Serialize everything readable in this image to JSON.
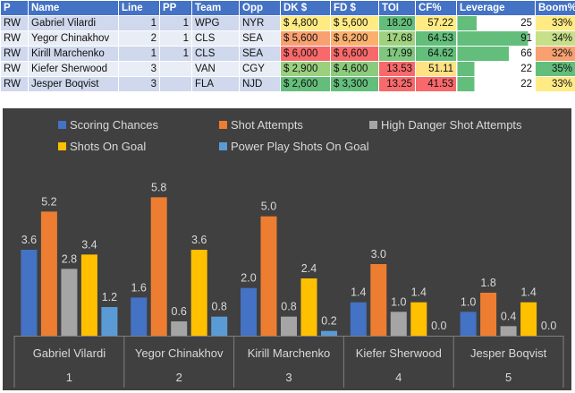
{
  "table": {
    "headers": [
      "P",
      "Name",
      "Line",
      "PP",
      "Team",
      "Opp",
      "DK $",
      "FD $",
      "TOI",
      "CF%",
      "Leverage",
      "Boom%"
    ],
    "rows": [
      [
        "RW",
        "Gabriel Vilardi",
        "1",
        "1",
        "WPG",
        "NYR",
        "$ 4,800",
        "$ 5,600",
        "18.20",
        "57.22",
        "25",
        "33%"
      ],
      [
        "RW",
        "Yegor Chinakhov",
        "2",
        "1",
        "CLS",
        "SEA",
        "$ 5,600",
        "$ 6,200",
        "17.68",
        "64.53",
        "91",
        "34%"
      ],
      [
        "RW",
        "Kirill Marchenko",
        "1",
        "1",
        "CLS",
        "SEA",
        "$ 6,000",
        "$ 6,600",
        "17.99",
        "64.62",
        "66",
        "32%"
      ],
      [
        "RW",
        "Kiefer Sherwood",
        "3",
        "",
        "VAN",
        "CGY",
        "$ 2,900",
        "$ 4,600",
        "13.53",
        "51.11",
        "22",
        "35%"
      ],
      [
        "RW",
        "Jesper Boqvist",
        "3",
        "",
        "FLA",
        "NJD",
        "$ 2,600",
        "$ 3,300",
        "13.25",
        "41.53",
        "22",
        "33%"
      ]
    ],
    "cell_colors": [
      [
        "",
        "",
        "",
        "",
        "",
        "",
        "#ffeb84",
        "#ffeb84",
        "#63be7b",
        "#ffeb84",
        "",
        "#ffeb84"
      ],
      [
        "",
        "",
        "",
        "",
        "",
        "",
        "#f8a070",
        "#fbb06e",
        "#a0d17f",
        "#63be7b",
        "#63be7b",
        "#c6e08a"
      ],
      [
        "",
        "",
        "",
        "",
        "",
        "",
        "#f8696b",
        "#f8696b",
        "#7fc77e",
        "#63be7b",
        "",
        "#f8a070"
      ],
      [
        "",
        "",
        "",
        "",
        "",
        "",
        "#9bd07f",
        "#8bcb7c",
        "#f8696b",
        "#ffe283",
        "",
        "#63be7b"
      ],
      [
        "",
        "",
        "",
        "",
        "",
        "",
        "#63be7b",
        "#63be7b",
        "#f8696b",
        "#f8696b",
        "",
        "#ffeb84"
      ]
    ],
    "leverage_bar_color": "#63be7b"
  },
  "chart_data": {
    "type": "bar",
    "title": "",
    "xlabel": "",
    "ylabel": "",
    "ylim": [
      0,
      6
    ],
    "grid": false,
    "legend_position": "top",
    "categories": [
      "Gabriel Vilardi",
      "Yegor Chinakhov",
      "Kirill Marchenko",
      "Kiefer Sherwood",
      "Jesper Boqvist"
    ],
    "category_numbers": [
      "1",
      "2",
      "3",
      "4",
      "5"
    ],
    "series": [
      {
        "name": "Scoring Chances",
        "color": "#4472c4",
        "values": [
          3.6,
          1.6,
          2.0,
          1.4,
          1.0
        ]
      },
      {
        "name": "Shot Attempts",
        "color": "#ed7d31",
        "values": [
          5.2,
          5.8,
          5.0,
          3.0,
          1.8
        ]
      },
      {
        "name": "High Danger Shot Attempts",
        "color": "#a5a5a5",
        "values": [
          2.8,
          0.6,
          0.8,
          1.0,
          0.4
        ]
      },
      {
        "name": "Shots On Goal",
        "color": "#ffc000",
        "values": [
          3.4,
          3.6,
          2.4,
          1.4,
          1.4
        ]
      },
      {
        "name": "Power Play Shots On Goal",
        "color": "#5b9bd5",
        "values": [
          1.2,
          0.8,
          0.2,
          0.0,
          0.0
        ]
      }
    ],
    "value_labels": [
      [
        "3.6",
        "1.6",
        "2.0",
        "1.4",
        "1.0"
      ],
      [
        "5.2",
        "5.8",
        "5.0",
        "3.0",
        "1.8"
      ],
      [
        "2.8",
        "0.6",
        "0.8",
        "1.0",
        "0.4"
      ],
      [
        "3.4",
        "3.6",
        "2.4",
        "1.4",
        "1.4"
      ],
      [
        "1.2",
        "0.8",
        "0.2",
        "0.0",
        "0.0"
      ]
    ]
  }
}
